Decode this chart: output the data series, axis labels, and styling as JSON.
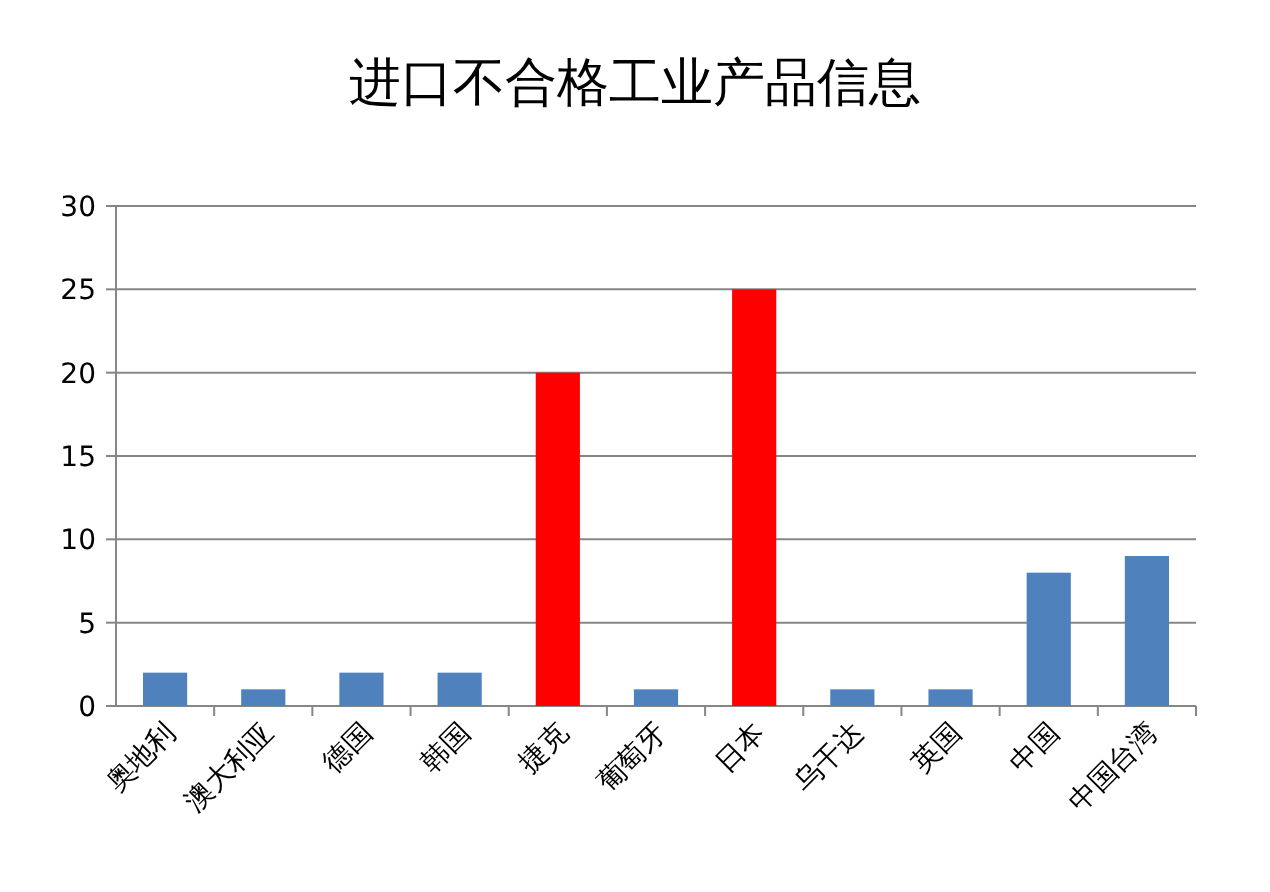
{
  "chart_data": {
    "type": "bar",
    "title": "进口不合格工业产品信息",
    "categories": [
      "奥地利",
      "澳大利亚",
      "德国",
      "韩国",
      "捷克",
      "葡萄牙",
      "日本",
      "乌干达",
      "英国",
      "中国",
      "中国台湾"
    ],
    "values": [
      2,
      1,
      2,
      2,
      20,
      1,
      25,
      1,
      1,
      8,
      9
    ],
    "colors": [
      "#4f81bd",
      "#4f81bd",
      "#4f81bd",
      "#4f81bd",
      "#ff0000",
      "#4f81bd",
      "#ff0000",
      "#4f81bd",
      "#4f81bd",
      "#4f81bd",
      "#4f81bd"
    ],
    "ylim": [
      0,
      30
    ],
    "yticks": [
      0,
      5,
      10,
      15,
      20,
      25,
      30
    ],
    "grid": "y"
  }
}
